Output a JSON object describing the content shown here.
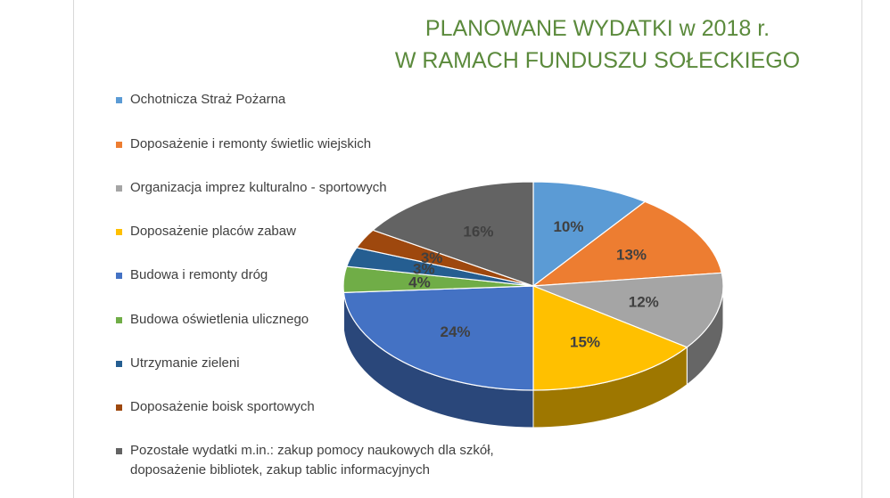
{
  "chart_data": {
    "type": "pie",
    "title": "PLANOWANE WYDATKI w 2018 r.",
    "subtitle": "W RAMACH FUNDUSZU SOŁECKIEGO",
    "legend_position": "left",
    "style": "3d-pie",
    "slices": [
      {
        "label": "Ochotnicza Straż Pożarna",
        "value": 10,
        "value_label": "10%",
        "color": "#5b9bd5"
      },
      {
        "label": "Doposażenie i remonty świetlic wiejskich",
        "value": 13,
        "value_label": "13%",
        "color": "#ed7d31"
      },
      {
        "label": "Organizacja imprez kulturalno - sportowych",
        "value": 12,
        "value_label": "12%",
        "color": "#a5a5a5"
      },
      {
        "label": "Doposażenie placów zabaw",
        "value": 15,
        "value_label": "15%",
        "color": "#ffc000"
      },
      {
        "label": "Budowa i remonty dróg",
        "value": 24,
        "value_label": "24%",
        "color": "#4472c4"
      },
      {
        "label": "Budowa oświetlenia ulicznego",
        "value": 4,
        "value_label": "4%",
        "color": "#70ad47"
      },
      {
        "label": "Utrzymanie zieleni",
        "value": 3,
        "value_label": "3%",
        "color": "#255e91"
      },
      {
        "label": "Doposażenie boisk sportowych",
        "value": 3,
        "value_label": "3%",
        "color": "#9e480e"
      },
      {
        "label": "Pozostałe wydatki m.in.: zakup pomocy naukowych dla szkół, doposażenie bibliotek, zakup tablic informacyjnych",
        "value": 16,
        "value_label": "16%",
        "color": "#636363"
      }
    ]
  }
}
